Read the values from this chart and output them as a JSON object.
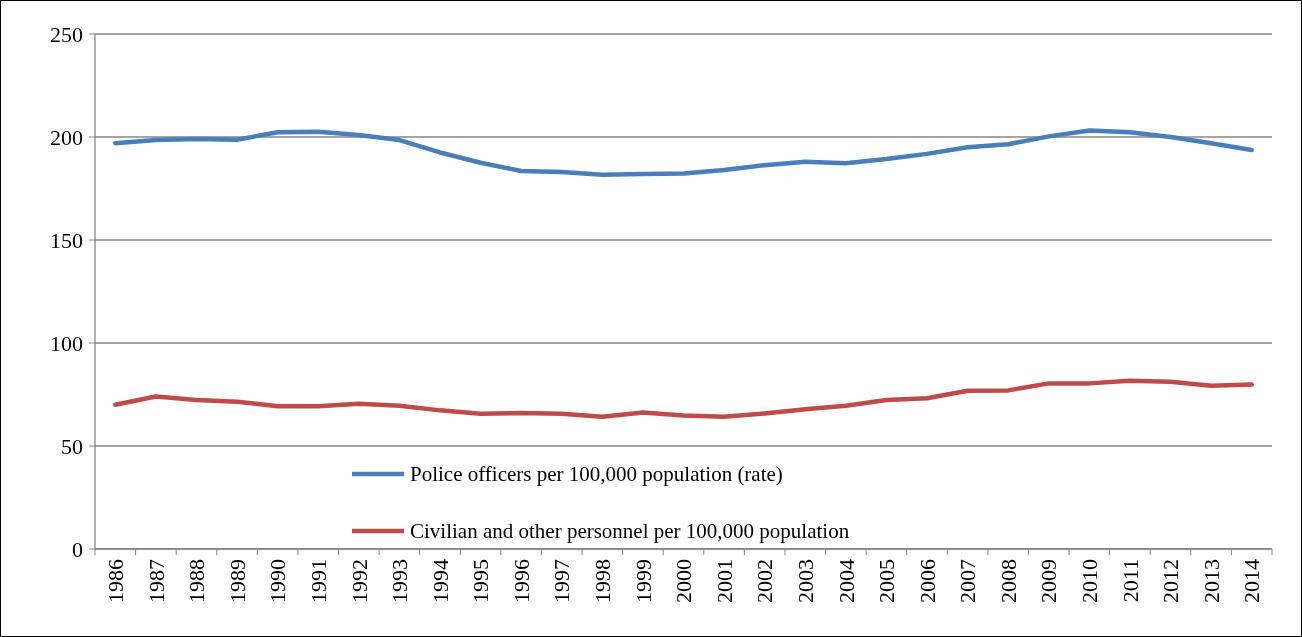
{
  "chart_data": {
    "type": "line",
    "categories": [
      "1986",
      "1987",
      "1988",
      "1989",
      "1990",
      "1991",
      "1992",
      "1993",
      "1994",
      "1995",
      "1996",
      "1997",
      "1998",
      "1999",
      "2000",
      "2001",
      "2002",
      "2003",
      "2004",
      "2005",
      "2006",
      "2007",
      "2008",
      "2009",
      "2010",
      "2011",
      "2012",
      "2013",
      "2014"
    ],
    "series": [
      {
        "name": "Police officers per 100,000 population (rate)",
        "color": "#4a7ebb",
        "values": [
          197,
          198.5,
          199,
          198.7,
          202.3,
          202.5,
          201,
          198.5,
          192.5,
          187.5,
          183.5,
          183,
          181.7,
          182,
          182.3,
          184,
          186.3,
          188,
          187.3,
          189.3,
          191.8,
          195,
          196.5,
          200.3,
          203.2,
          202.3,
          200,
          197,
          193.7
        ]
      },
      {
        "name": "Civilian and other personnel per 100,000 population",
        "color": "#be4b48",
        "values": [
          70,
          74,
          72.3,
          71.5,
          69.3,
          69.3,
          70.5,
          69.5,
          67.3,
          65.7,
          66,
          65.7,
          64.2,
          66.3,
          64.8,
          64.2,
          65.8,
          67.8,
          69.5,
          72.3,
          73.2,
          76.8,
          77,
          80.4,
          80.4,
          81.7,
          81.2,
          79.2,
          79.8
        ]
      }
    ],
    "ylim": [
      0,
      250
    ],
    "yticks": [
      0,
      50,
      100,
      150,
      200,
      250
    ],
    "grid": "y",
    "legend": "bottom",
    "marker": "none",
    "line_style": "solid"
  }
}
